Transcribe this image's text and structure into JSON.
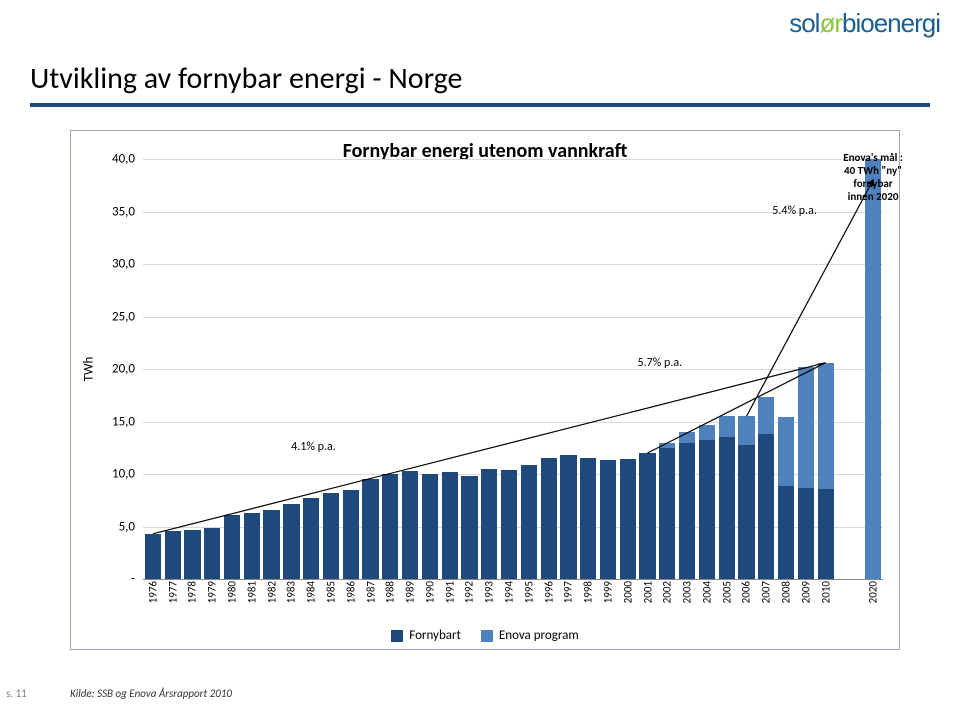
{
  "logo": {
    "part1": "sol",
    "part2": "ør",
    "part3": "bioenergi"
  },
  "page_title": "Utvikling av fornybar energi - Norge",
  "source": "Kilde: SSB og Enova Årsrapport 2010",
  "page_number": "s. 11",
  "chart": {
    "type": "stacked-bar",
    "title": "Fornybar energi utenom vannkraft",
    "y_axis_label": "TWh",
    "ylim": [
      0,
      40
    ],
    "ytick_step": 5,
    "ytick_labels": [
      "-",
      "5,0",
      "10,0",
      "15,0",
      "20,0",
      "25,0",
      "30,0",
      "35,0",
      "40,0"
    ],
    "background": "#ffffff",
    "grid_color": "#d9d9d9",
    "series": [
      {
        "name": "Fornybart",
        "color": "#1f497d"
      },
      {
        "name": "Enova program",
        "color": "#4f81bd"
      }
    ],
    "categories": [
      "1976",
      "1977",
      "1978",
      "1979",
      "1980",
      "1981",
      "1982",
      "1983",
      "1984",
      "1985",
      "1986",
      "1987",
      "1988",
      "1989",
      "1990",
      "1991",
      "1992",
      "1993",
      "1994",
      "1995",
      "1996",
      "1997",
      "1998",
      "1999",
      "2000",
      "2001",
      "2002",
      "2003",
      "2004",
      "2005",
      "2006",
      "2007",
      "2008",
      "2009",
      "2010",
      "2020"
    ],
    "fornybart": [
      4.3,
      4.6,
      4.7,
      4.9,
      6.1,
      6.3,
      6.6,
      7.1,
      7.7,
      8.2,
      8.5,
      9.5,
      10.0,
      10.3,
      10.0,
      10.2,
      9.8,
      10.5,
      10.4,
      10.9,
      11.5,
      11.8,
      11.5,
      11.3,
      11.4,
      12.0,
      12.5,
      13.0,
      13.2,
      13.5,
      12.8,
      13.8,
      8.9,
      8.7,
      8.6,
      0.0
    ],
    "enova_program": [
      0.0,
      0.0,
      0.0,
      0.0,
      0.0,
      0.0,
      0.0,
      0.0,
      0.0,
      0.0,
      0.0,
      0.0,
      0.0,
      0.0,
      0.0,
      0.0,
      0.0,
      0.0,
      0.0,
      0.0,
      0.0,
      0.0,
      0.0,
      0.0,
      0.0,
      0.0,
      0.5,
      1.0,
      1.5,
      2.0,
      2.7,
      3.5,
      6.5,
      11.5,
      12.0,
      40.0
    ],
    "gap_after_index": 34,
    "bar_gap_ratio": 0.18,
    "annotations": {
      "goal": "Enova's mål :\n40 TWh \"ny\"\nfornybar\ninnen 2020",
      "rate1": "5.4% p.a.",
      "rate2": "5.7% p.a.",
      "rate3": "4.1% p.a."
    },
    "trend_lines": [
      {
        "x1_cat": 0,
        "y1": 4.3,
        "x2_cat": 34,
        "y2": 20.6,
        "has_arrow": false
      },
      {
        "x1_cat": 25,
        "y1": 12.0,
        "x2_cat": 34,
        "y2": 20.6,
        "has_arrow": false
      },
      {
        "x1_cat": 30,
        "y1": 15.5,
        "x2_cat": 35,
        "y2": 38.0,
        "has_arrow": true
      }
    ],
    "trend_color": "#000000",
    "trend_width": 1.2
  }
}
